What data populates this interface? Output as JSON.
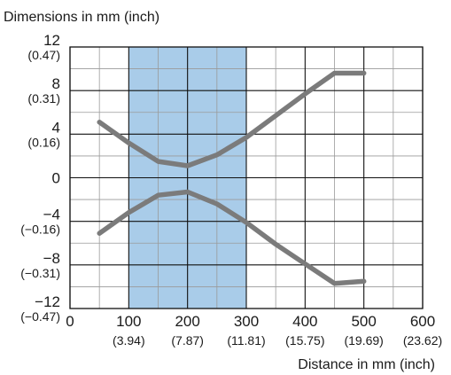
{
  "chart_data": {
    "type": "line",
    "title": "Dimensions in mm (inch)",
    "xlabel": "Distance in mm (inch)",
    "ylabel": "",
    "xlim": [
      0,
      600
    ],
    "ylim": [
      -12,
      12
    ],
    "grid": true,
    "x_ticks": [
      {
        "value": 0,
        "label": "0",
        "sub": ""
      },
      {
        "value": 100,
        "label": "100",
        "sub": "(3.94)"
      },
      {
        "value": 200,
        "label": "200",
        "sub": "(7.87)"
      },
      {
        "value": 300,
        "label": "300",
        "sub": "(11.81)"
      },
      {
        "value": 400,
        "label": "400",
        "sub": "(15.75)"
      },
      {
        "value": 500,
        "label": "500",
        "sub": "(19.69)"
      },
      {
        "value": 600,
        "label": "600",
        "sub": "(23.62)"
      }
    ],
    "y_ticks": [
      {
        "value": 12,
        "label": "12",
        "sub": "(0.47)"
      },
      {
        "value": 8,
        "label": "8",
        "sub": "(0.31)"
      },
      {
        "value": 4,
        "label": "4",
        "sub": "(0.16)"
      },
      {
        "value": 0,
        "label": "0",
        "sub": ""
      },
      {
        "value": -4,
        "label": "−4",
        "sub": "(−0.16)"
      },
      {
        "value": -8,
        "label": "−8",
        "sub": "(−0.31)"
      },
      {
        "value": -12,
        "label": "−12",
        "sub": "(−0.47)"
      }
    ],
    "highlight_range": [
      100,
      300
    ],
    "highlight_color": "#a9cce9",
    "series_color": "#7b7b7b",
    "series": [
      {
        "x": [
          50,
          100,
          150,
          200,
          250,
          300,
          350,
          400,
          450,
          500
        ],
        "y": [
          5.1,
          3.2,
          1.5,
          1.1,
          2.1,
          3.7,
          5.7,
          7.7,
          9.6,
          9.6
        ]
      },
      {
        "x": [
          50,
          100,
          150,
          200,
          250,
          300,
          350,
          400,
          450,
          500
        ],
        "y": [
          -5.1,
          -3.2,
          -1.6,
          -1.3,
          -2.4,
          -4.1,
          -6.1,
          -7.9,
          -9.7,
          -9.5
        ]
      }
    ]
  }
}
